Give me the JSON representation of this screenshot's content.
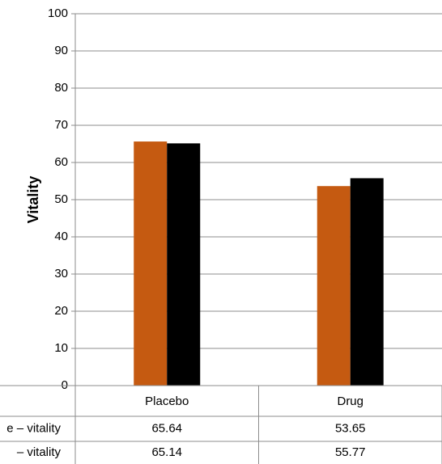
{
  "chart_data": {
    "type": "bar",
    "title": "",
    "xlabel": "",
    "ylabel": "Vitality",
    "ylim": [
      0,
      100
    ],
    "yticks": [
      0,
      10,
      20,
      30,
      40,
      50,
      60,
      70,
      80,
      90,
      100
    ],
    "grid": true,
    "legend": "data-table-bottom",
    "categories": [
      "Placebo",
      "Drug"
    ],
    "series": [
      {
        "name": "e – vitality",
        "color": "#c55a11",
        "values": [
          65.64,
          53.65
        ],
        "value_labels": [
          "65.64",
          "53.65"
        ]
      },
      {
        "name": "– vitality",
        "color": "#000000",
        "values": [
          65.14,
          55.77
        ],
        "value_labels": [
          "65.14",
          "55.77"
        ]
      }
    ]
  }
}
